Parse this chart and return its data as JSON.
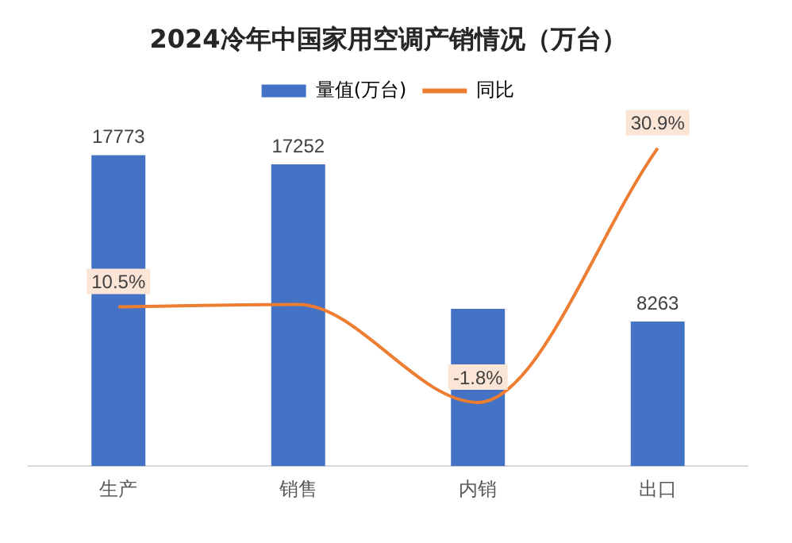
{
  "chart_data": {
    "type": "bar",
    "title": "2024冷年中国家用空调产销情况（万台）",
    "categories": [
      "生产",
      "销售",
      "内销",
      "出口"
    ],
    "series": [
      {
        "name": "量值(万台)",
        "color": "#4472c4",
        "values": [
          17773,
          17252,
          8989,
          8263
        ],
        "value_labels": [
          "17773",
          "17252",
          null,
          "8263"
        ]
      },
      {
        "name": "同比",
        "type": "line",
        "axis": "y2",
        "color": "#ed7d31",
        "values": [
          10.5,
          10.8,
          -1.8,
          30.9
        ],
        "value_labels": [
          "10.5%",
          null,
          "-1.8%",
          "30.9%"
        ]
      }
    ],
    "legend": "top",
    "grid": false,
    "marker": "none",
    "tick_labels": "x"
  }
}
